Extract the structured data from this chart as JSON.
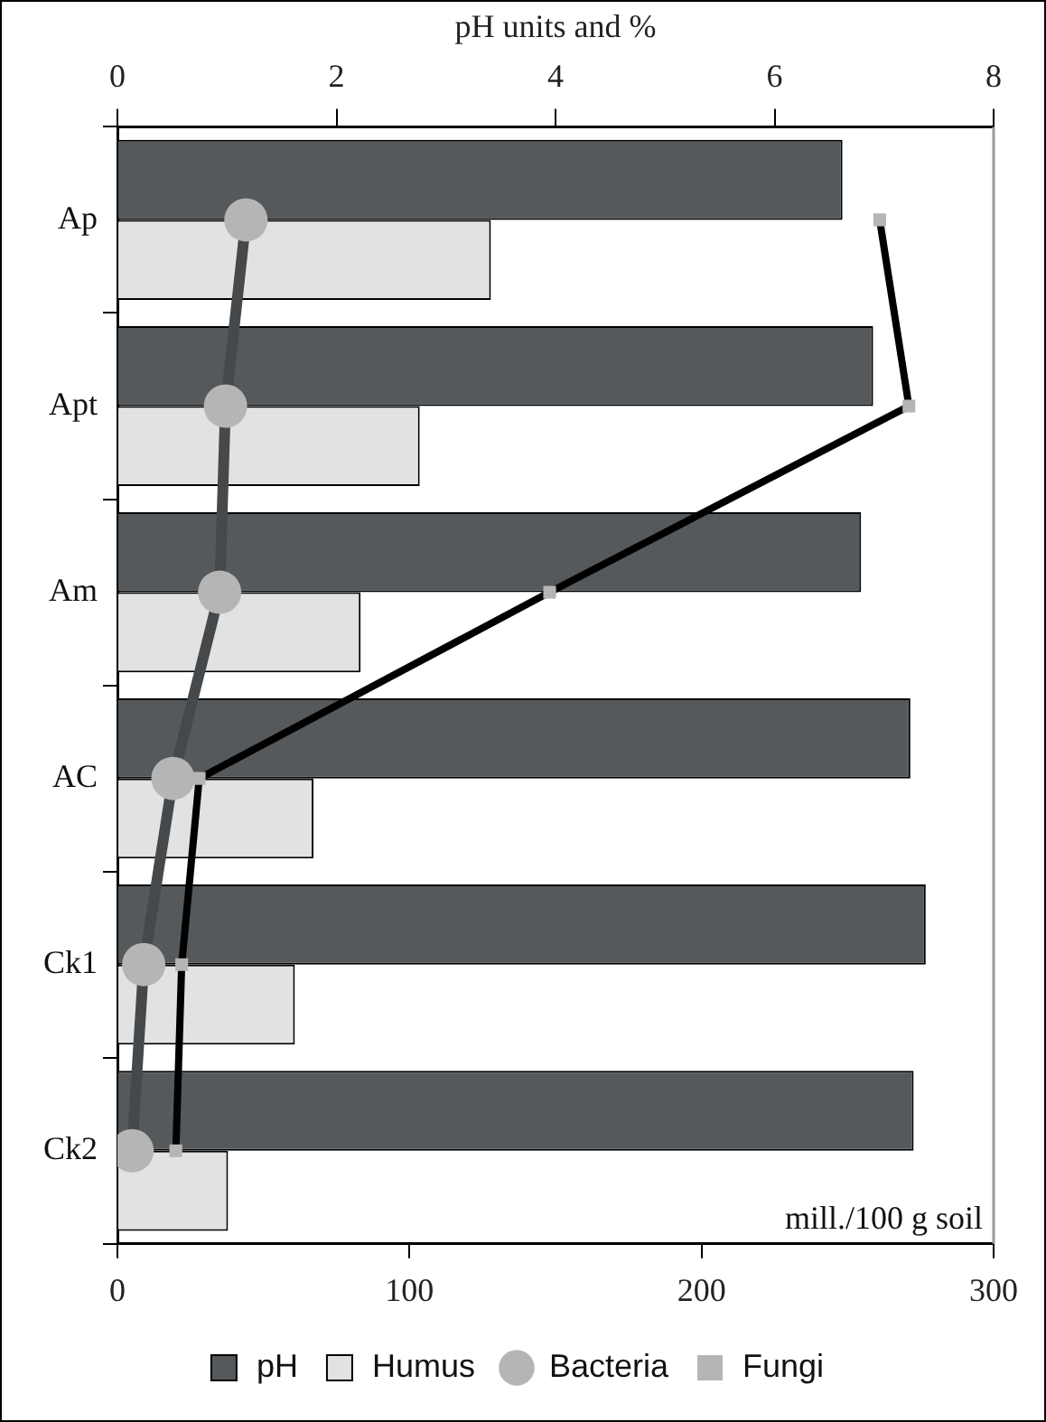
{
  "chart_data": {
    "type": "bar",
    "orientation": "horizontal",
    "categories": [
      "Ap",
      "Apt",
      "Am",
      "AC",
      "Ck1",
      "Ck2"
    ],
    "xlabel": "mill./100 g soil",
    "x2label": "pH units and %",
    "xlim": [
      0,
      300
    ],
    "xticks": [
      0,
      100,
      200,
      300
    ],
    "x2lim": [
      0,
      8
    ],
    "x2ticks": [
      0,
      2,
      4,
      6,
      8
    ],
    "series": [
      {
        "name": "pH",
        "axis": "x2",
        "color": "#55595c",
        "values": [
          6.62,
          6.9,
          6.79,
          7.24,
          7.38,
          7.27
        ]
      },
      {
        "name": "Humus",
        "axis": "x2",
        "color": "#e2e2e2",
        "values": [
          3.41,
          2.76,
          2.22,
          1.79,
          1.62,
          1.01
        ]
      },
      {
        "name": "Bacteria",
        "type": "line",
        "color": "#45494c",
        "marker": "circle",
        "values": [
          44,
          37,
          35,
          19,
          9,
          5
        ]
      },
      {
        "name": "Fungi",
        "type": "line",
        "color": "#000000",
        "marker": "square",
        "values": [
          261,
          271,
          148,
          28,
          22,
          20
        ]
      }
    ],
    "grid": false,
    "legend": "bottom"
  }
}
